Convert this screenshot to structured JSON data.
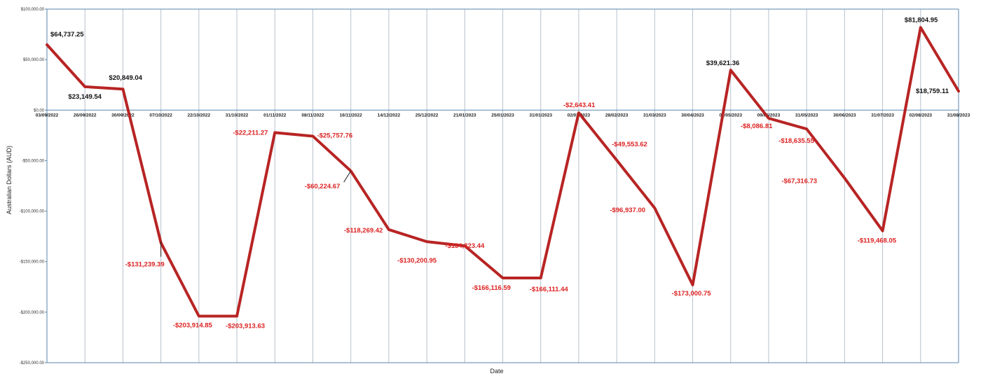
{
  "chart_data": {
    "type": "line",
    "title": "",
    "xlabel": "Date",
    "ylabel": "Australian Dollars (AUD)",
    "ylim": [
      -250000,
      100000
    ],
    "y_ticks": [
      100000,
      50000,
      0,
      -50000,
      -100000,
      -150000,
      -200000,
      -250000
    ],
    "y_tick_labels": [
      "$100,000.00",
      "$50,000.00",
      "$0.00",
      "-$50,000.00",
      "-$100,000.00",
      "-$150,000.00",
      "-$200,000.00",
      "-$250,000.00"
    ],
    "grid": {
      "vertical": true,
      "horizontal": false
    },
    "line_color": "#b82424",
    "positive_label_color": "#111111",
    "negative_label_color": "#dd2222",
    "series": [
      {
        "x": [
          "03/09/2022",
          "26/09/2022",
          "30/09/2022",
          "07/10/2022",
          "22/10/2022",
          "31/10/2022",
          "01/11/2022",
          "08/11/2022",
          "16/11/2022",
          "14/12/2022",
          "25/12/2022",
          "21/01/2023",
          "25/01/2023",
          "31/01/2023",
          "02/02/2023",
          "28/02/2023",
          "31/03/2023",
          "30/04/2023",
          "01/05/2023",
          "09/05/2023",
          "31/05/2023",
          "30/06/2023",
          "31/07/2023",
          "02/08/2023",
          "31/08/2023"
        ],
        "values": [
          64737.25,
          23149.54,
          20849.04,
          -131239.39,
          -203914.85,
          -203913.63,
          -22211.27,
          -25757.76,
          -60224.67,
          -118269.42,
          -130200.95,
          -134323.44,
          -166116.59,
          -166111.44,
          -2643.41,
          -49553.62,
          -96937.0,
          -173000.75,
          39621.36,
          -8086.81,
          -18635.55,
          -67316.73,
          -119468.05,
          81804.95,
          18759.11
        ],
        "labels": [
          "$64,737.25",
          "$23,149.54",
          "$20,849.04",
          "-$131,239.39",
          "-$203,914.85",
          "-$203,913.63",
          "-$22,211.27",
          "-$25,757.76",
          "-$60,224.67",
          "-$118,269.42",
          "-$130,200.95",
          "-$134,323.44",
          "-$166,116.59",
          "-$166,111.44",
          "-$2,643.41",
          "-$49,553.62",
          "-$96,937.00",
          "-$173,000.75",
          "$39,621.36",
          "-$8,086.81",
          "-$18,635.55",
          "-$67,316.73",
          "-$119,468.05",
          "$81,804.95",
          "$18,759.11"
        ]
      }
    ]
  }
}
